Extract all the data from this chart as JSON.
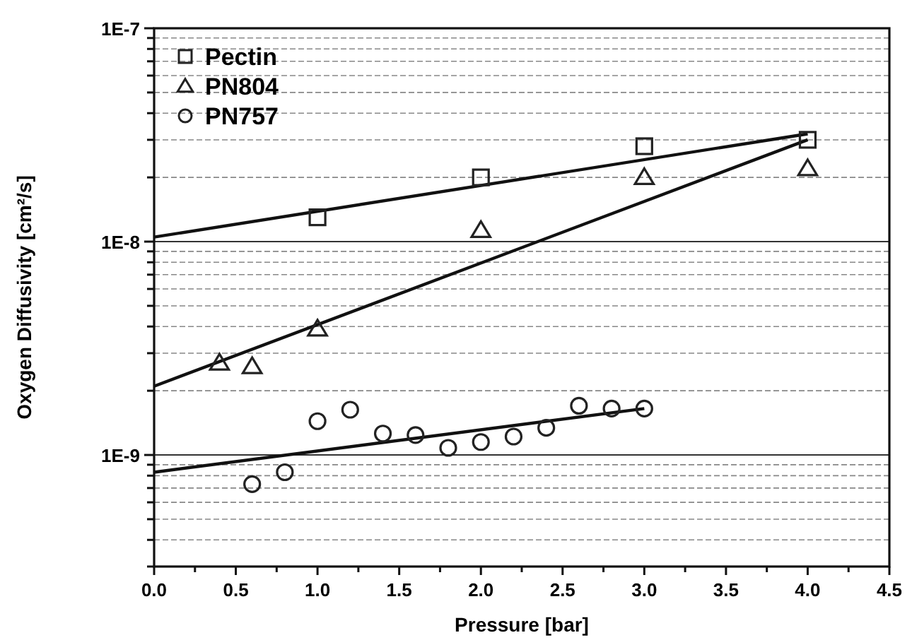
{
  "chart_data": {
    "type": "scatter",
    "xlabel": "Pressure [bar]",
    "ylabel": "Oxygen Diffusivity [cm²/s]",
    "log": "y",
    "grid": "y",
    "legend": "top left",
    "xlim": [
      0,
      4.5
    ],
    "xticks": [
      {
        "value": 0,
        "label": "0.0"
      },
      {
        "value": 0.25,
        "label": null
      },
      {
        "value": 0.5,
        "label": "0.5"
      },
      {
        "value": 0.75,
        "label": null
      },
      {
        "value": 1,
        "label": "1.0"
      },
      {
        "value": 1.25,
        "label": null
      },
      {
        "value": 1.5,
        "label": "1.5"
      },
      {
        "value": 1.75,
        "label": null
      },
      {
        "value": 2,
        "label": "2.0"
      },
      {
        "value": 2.25,
        "label": null
      },
      {
        "value": 2.5,
        "label": "2.5"
      },
      {
        "value": 2.75,
        "label": null
      },
      {
        "value": 3,
        "label": "3.0"
      },
      {
        "value": 3.25,
        "label": null
      },
      {
        "value": 3.5,
        "label": "3.5"
      },
      {
        "value": 3.75,
        "label": null
      },
      {
        "value": 4,
        "label": "4.0"
      },
      {
        "value": 4.25,
        "label": null
      },
      {
        "value": 4.5,
        "label": "4.5"
      }
    ],
    "ylim": [
      3e-10,
      1e-07
    ],
    "yticks": [
      {
        "value": 3e-10,
        "label": null
      },
      {
        "value": 4e-10,
        "label": null
      },
      {
        "value": 5e-10,
        "label": null
      },
      {
        "value": 6e-10,
        "label": null
      },
      {
        "value": 7e-10,
        "label": null
      },
      {
        "value": 8e-10,
        "label": null
      },
      {
        "value": 9e-10,
        "label": null
      },
      {
        "value": 1e-09,
        "label": "1E-9"
      },
      {
        "value": 2e-09,
        "label": null
      },
      {
        "value": 3e-09,
        "label": null
      },
      {
        "value": 4e-09,
        "label": null
      },
      {
        "value": 5e-09,
        "label": null
      },
      {
        "value": 6e-09,
        "label": null
      },
      {
        "value": 7e-09,
        "label": null
      },
      {
        "value": 8e-09,
        "label": null
      },
      {
        "value": 9e-09,
        "label": null
      },
      {
        "value": 1e-08,
        "label": "1E-8"
      },
      {
        "value": 2e-08,
        "label": null
      },
      {
        "value": 3e-08,
        "label": null
      },
      {
        "value": 4e-08,
        "label": null
      },
      {
        "value": 5e-08,
        "label": null
      },
      {
        "value": 6e-08,
        "label": null
      },
      {
        "value": 7e-08,
        "label": null
      },
      {
        "value": 8e-08,
        "label": null
      },
      {
        "value": 9e-08,
        "label": null
      },
      {
        "value": 1e-07,
        "label": "1E-7"
      }
    ],
    "series": [
      {
        "name": "Pectin",
        "marker": "square",
        "color": "#222222",
        "x": [
          1,
          2,
          3,
          4
        ],
        "values": [
          1.3e-08,
          2e-08,
          2.8e-08,
          3e-08
        ]
      },
      {
        "name": "PN804",
        "marker": "triangle",
        "color": "#222222",
        "x": [
          0.4,
          0.6,
          1,
          2,
          3,
          4
        ],
        "values": [
          2.7e-09,
          2.6e-09,
          3.9e-09,
          1.13e-08,
          2e-08,
          2.2e-08
        ]
      },
      {
        "name": "PN757",
        "marker": "circle",
        "color": "#222222",
        "x": [
          0.6,
          0.8,
          1,
          1.2,
          1.4,
          1.6,
          1.8,
          2,
          2.2,
          2.4,
          2.6,
          2.8,
          3
        ],
        "values": [
          7.3e-10,
          8.3e-10,
          1.44e-09,
          1.63e-09,
          1.26e-09,
          1.24e-09,
          1.08e-09,
          1.15e-09,
          1.22e-09,
          1.34e-09,
          1.7e-09,
          1.65e-09,
          1.65e-09
        ]
      },
      {
        "type": "line",
        "marker": "none",
        "line_style": "solid",
        "color": "#111111",
        "x": [
          0,
          4
        ],
        "values": [
          1.05e-08,
          3.2e-08
        ]
      },
      {
        "type": "line",
        "marker": "none",
        "line_style": "solid",
        "color": "#111111",
        "x": [
          0,
          4
        ],
        "values": [
          2.1e-09,
          3e-08
        ]
      },
      {
        "type": "line",
        "marker": "none",
        "line_style": "solid",
        "color": "#111111",
        "x": [
          0,
          3
        ],
        "values": [
          8.3e-10,
          1.65e-09
        ]
      }
    ]
  }
}
